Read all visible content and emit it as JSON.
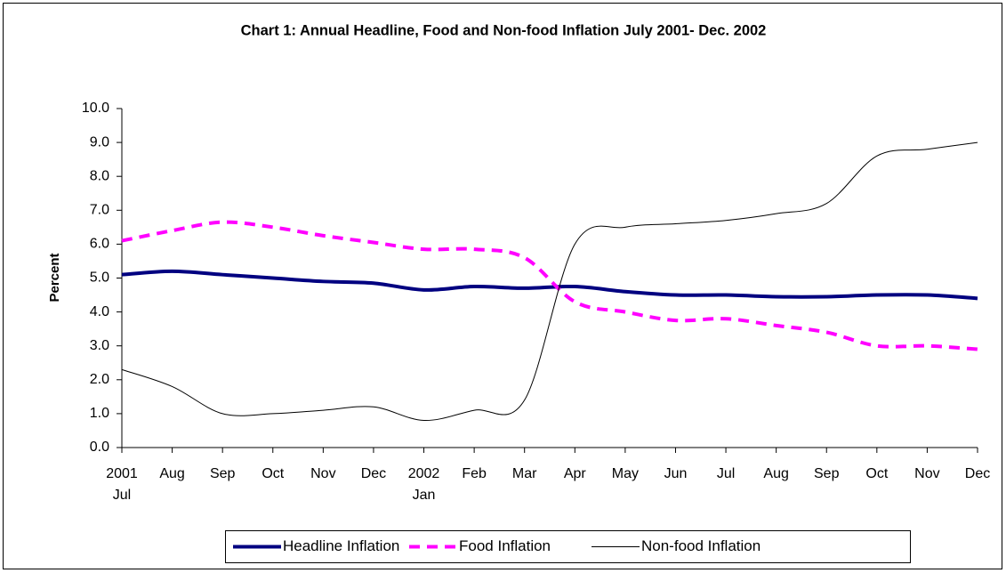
{
  "chart_data": {
    "type": "line",
    "title": "Chart 1: Annual Headline, Food and Non-food Inflation July 2001- Dec. 2002",
    "y_label": "Percent",
    "categories": [
      [
        "2001",
        "Jul"
      ],
      [
        "Aug"
      ],
      [
        "Sep"
      ],
      [
        "Oct"
      ],
      [
        "Nov"
      ],
      [
        "Dec"
      ],
      [
        "2002",
        "Jan"
      ],
      [
        "Feb"
      ],
      [
        "Mar"
      ],
      [
        "Apr"
      ],
      [
        "May"
      ],
      [
        "Jun"
      ],
      [
        "Jul"
      ],
      [
        "Aug"
      ],
      [
        "Sep"
      ],
      [
        "Oct"
      ],
      [
        "Nov"
      ],
      [
        "Dec"
      ]
    ],
    "series": [
      {
        "name": "Headline Inflation",
        "color": "#000080",
        "style": "solid",
        "width": 4,
        "values": [
          5.1,
          5.2,
          5.1,
          5.0,
          4.9,
          4.85,
          4.65,
          4.75,
          4.7,
          4.75,
          4.6,
          4.5,
          4.5,
          4.45,
          4.45,
          4.5,
          4.5,
          4.4
        ]
      },
      {
        "name": "Food Inflation",
        "color": "#ff00ff",
        "style": "dashed",
        "width": 4,
        "values": [
          6.1,
          6.4,
          6.65,
          6.5,
          6.25,
          6.05,
          5.85,
          5.85,
          5.6,
          4.3,
          4.0,
          3.75,
          3.8,
          3.6,
          3.4,
          3.0,
          3.0,
          2.9
        ]
      },
      {
        "name": "Non-food Inflation",
        "color": "#000000",
        "style": "solid",
        "width": 1,
        "values": [
          2.3,
          1.8,
          1.0,
          1.0,
          1.1,
          1.2,
          0.8,
          1.1,
          1.4,
          6.0,
          6.5,
          6.6,
          6.7,
          6.9,
          7.2,
          8.6,
          8.8,
          9.0
        ]
      }
    ],
    "ylim": [
      0,
      10
    ],
    "yticks": [
      {
        "value": 0,
        "label": "0.0"
      },
      {
        "value": 1,
        "label": "1.0"
      },
      {
        "value": 2,
        "label": "2.0"
      },
      {
        "value": 3,
        "label": "3.0"
      },
      {
        "value": 4,
        "label": "4.0"
      },
      {
        "value": 5,
        "label": "5.0"
      },
      {
        "value": 6,
        "label": "6.0"
      },
      {
        "value": 7,
        "label": "7.0"
      },
      {
        "value": 8,
        "label": "8.0"
      },
      {
        "value": 9,
        "label": "9.0"
      },
      {
        "value": 10,
        "label": "10.0"
      }
    ],
    "grid": false,
    "legend": "bottom"
  }
}
